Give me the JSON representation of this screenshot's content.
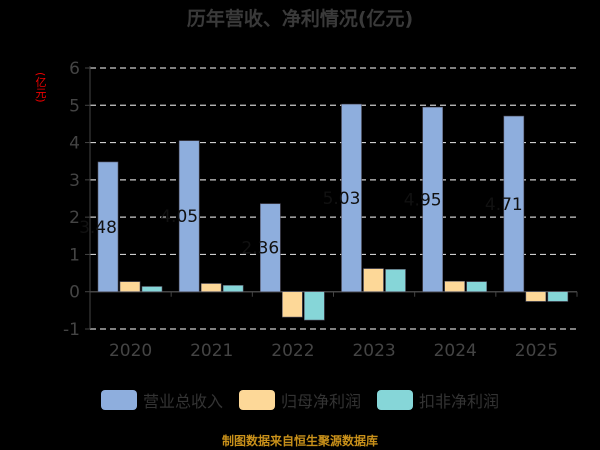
{
  "chart_data": {
    "type": "bar",
    "title": "历年营收、净利情况(亿元)",
    "ylabel": "(亿元)",
    "categories": [
      "2020",
      "2021",
      "2022",
      "2023",
      "2024",
      "2025"
    ],
    "ylim": [
      -1,
      6
    ],
    "yticks": [
      -1,
      0,
      1,
      2,
      3,
      4,
      5,
      6
    ],
    "grid": true,
    "legend_position": "bottom",
    "series": [
      {
        "name": "营业总收入",
        "color": "#8eaedd",
        "values": [
          3.48,
          4.05,
          2.36,
          5.03,
          4.95,
          4.71
        ],
        "labels": [
          "3.48",
          "4.05",
          "2.36",
          "5.03",
          "4.95",
          "4.71"
        ]
      },
      {
        "name": "归母净利润",
        "color": "#fdd898",
        "values": [
          0.27,
          0.22,
          -0.68,
          0.62,
          0.28,
          -0.26
        ]
      },
      {
        "name": "扣非净利润",
        "color": "#86d6d8",
        "values": [
          0.14,
          0.17,
          -0.76,
          0.6,
          0.27,
          -0.26
        ]
      }
    ]
  },
  "footer": "制图数据来自恒生聚源数据库"
}
